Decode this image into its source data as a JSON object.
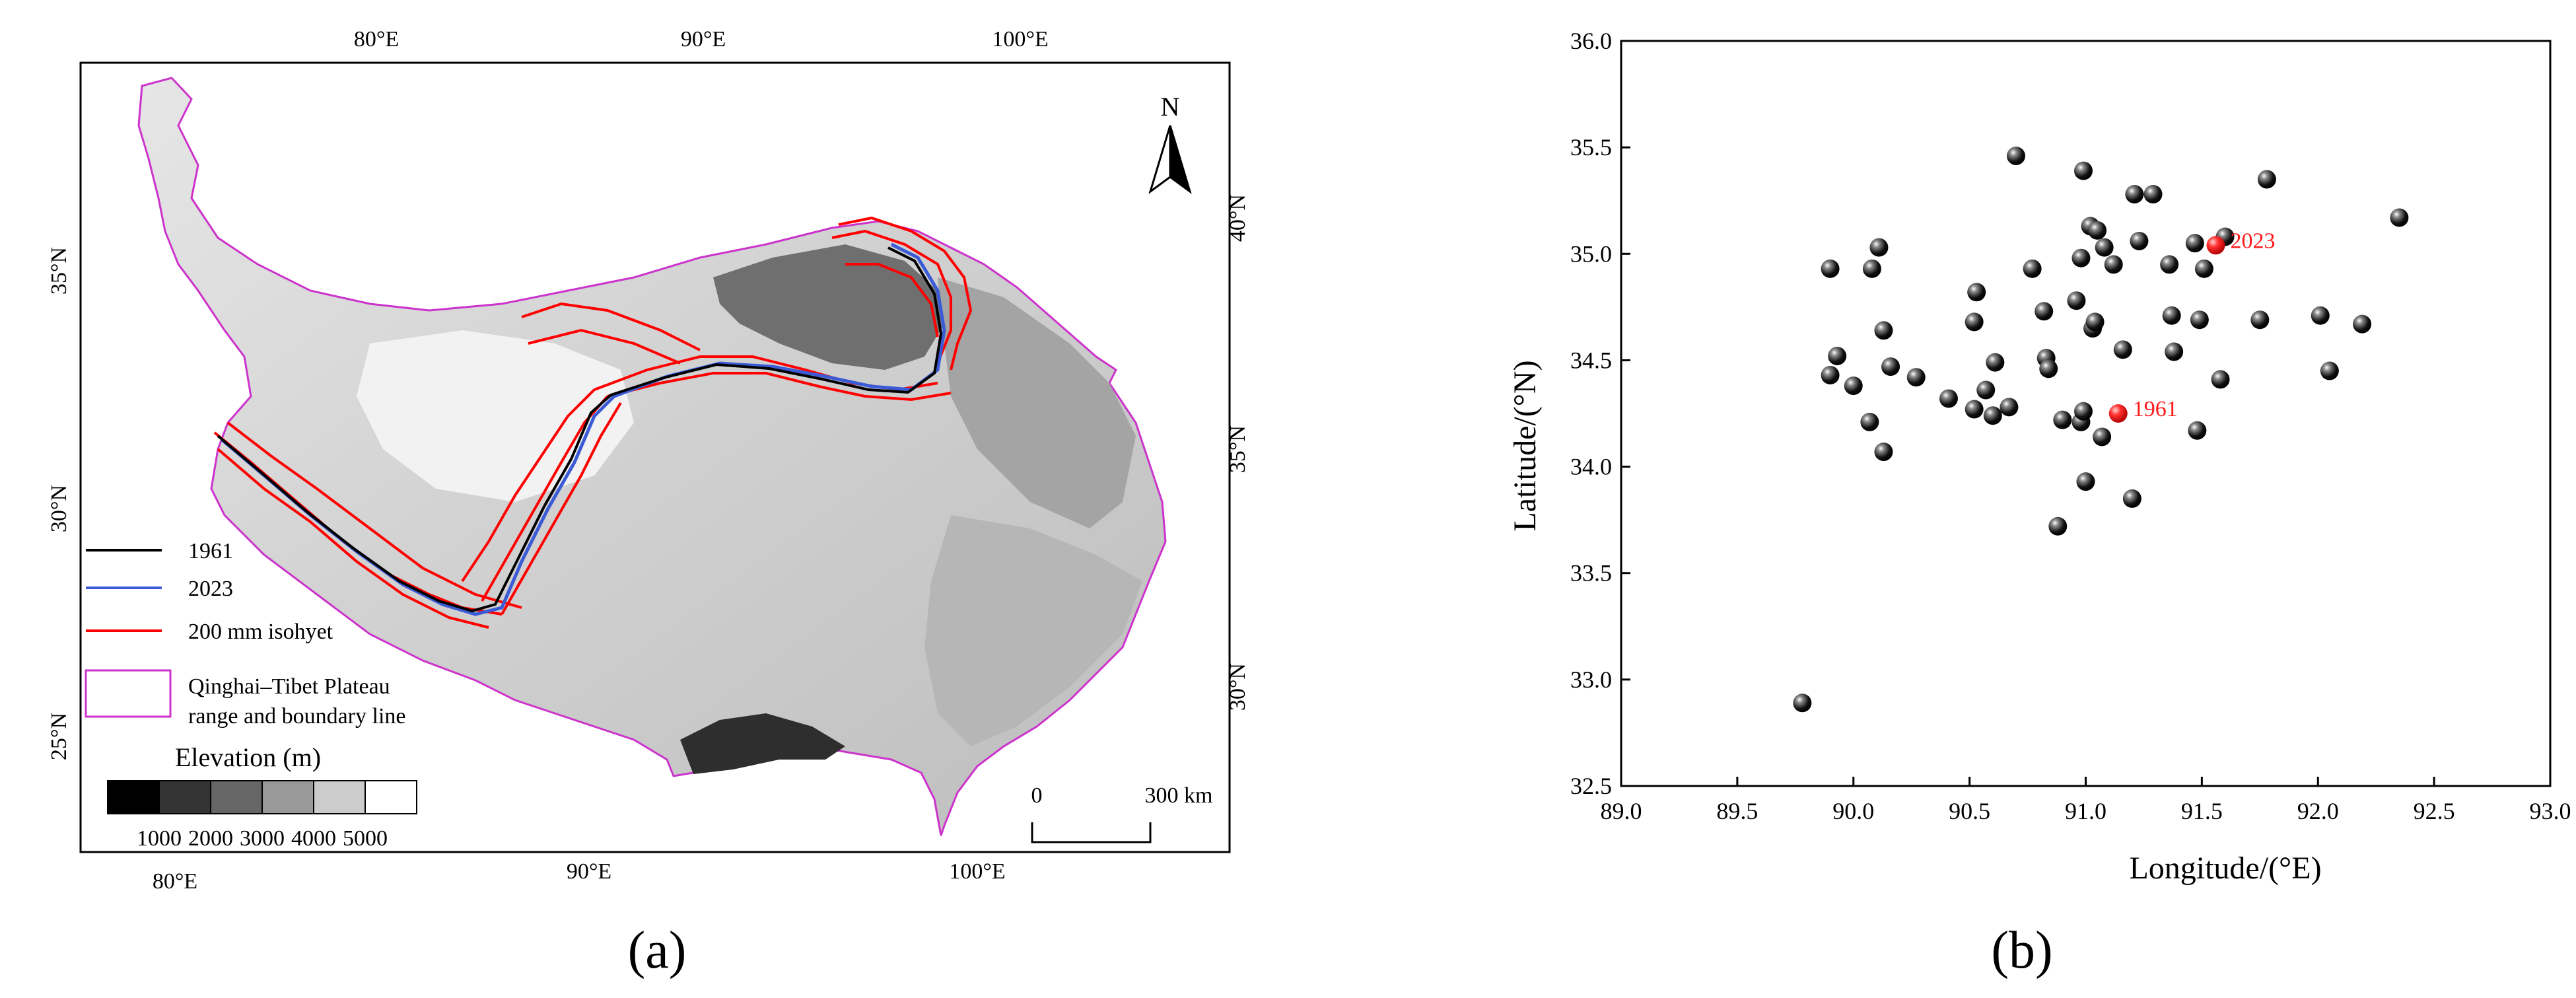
{
  "panel_a": {
    "label": "(a)",
    "top_ticks": [
      "80°E",
      "90°E",
      "100°E"
    ],
    "bottom_ticks": [
      "80°E",
      "90°E",
      "100°E"
    ],
    "left_ticks": [
      "35°N",
      "30°N",
      "25°N"
    ],
    "right_ticks": [
      "40°N",
      "35°N",
      "30°N"
    ],
    "north_label": "N",
    "legend": {
      "items": [
        {
          "label": "1961",
          "color": "#000000"
        },
        {
          "label": "2023",
          "color": "#3b5bd6"
        },
        {
          "label": "200 mm isohyet",
          "color": "#ff0000"
        }
      ],
      "boundary_line1": "Qinghai–Tibet Plateau",
      "boundary_line2": "range and boundary line",
      "boundary_color": "#cc33cc"
    },
    "elevation": {
      "title": "Elevation (m)",
      "labels": [
        "1000",
        "2000",
        "3000",
        "4000",
        "5000"
      ],
      "colors": [
        "#000000",
        "#333333",
        "#666666",
        "#999999",
        "#cccccc",
        "#ffffff"
      ]
    },
    "scale": {
      "start": "0",
      "end": "300 km"
    }
  },
  "panel_b": {
    "label": "(b)",
    "chart_data": {
      "type": "scatter",
      "xlabel": "Longitude/(°E)",
      "ylabel": "Latitude/(°N)",
      "xlim": [
        89.0,
        93.0
      ],
      "ylim": [
        32.5,
        36.0
      ],
      "x_ticks": [
        "89.0",
        "89.5",
        "90.0",
        "90.5",
        "91.0",
        "91.5",
        "92.0",
        "92.5",
        "93.0"
      ],
      "y_ticks": [
        "32.5",
        "33.0",
        "33.5",
        "34.0",
        "34.5",
        "35.0",
        "35.5",
        "36.0"
      ],
      "grid": false,
      "points": [
        [
          89.78,
          32.89
        ],
        [
          89.9,
          34.93
        ],
        [
          89.9,
          34.43
        ],
        [
          89.93,
          34.52
        ],
        [
          90.0,
          34.38
        ],
        [
          90.07,
          34.21
        ],
        [
          90.08,
          34.93
        ],
        [
          90.11,
          35.03
        ],
        [
          90.13,
          34.64
        ],
        [
          90.13,
          34.07
        ],
        [
          90.16,
          34.47
        ],
        [
          90.27,
          34.42
        ],
        [
          90.41,
          34.32
        ],
        [
          90.52,
          34.27
        ],
        [
          90.52,
          34.68
        ],
        [
          90.53,
          34.82
        ],
        [
          90.57,
          34.36
        ],
        [
          90.6,
          34.24
        ],
        [
          90.61,
          34.49
        ],
        [
          90.67,
          34.28
        ],
        [
          90.7,
          35.46
        ],
        [
          90.77,
          34.93
        ],
        [
          90.82,
          34.73
        ],
        [
          90.83,
          34.51
        ],
        [
          90.84,
          34.46
        ],
        [
          90.88,
          33.72
        ],
        [
          90.9,
          34.22
        ],
        [
          90.96,
          34.78
        ],
        [
          90.98,
          34.21
        ],
        [
          90.98,
          34.98
        ],
        [
          90.99,
          34.26
        ],
        [
          90.99,
          35.39
        ],
        [
          91.0,
          33.93
        ],
        [
          91.02,
          35.13
        ],
        [
          91.03,
          34.65
        ],
        [
          91.04,
          34.68
        ],
        [
          91.05,
          35.11
        ],
        [
          91.07,
          34.14
        ],
        [
          91.08,
          35.03
        ],
        [
          91.12,
          34.95
        ],
        [
          91.16,
          34.55
        ],
        [
          91.2,
          33.85
        ],
        [
          91.21,
          35.28
        ],
        [
          91.23,
          35.06
        ],
        [
          91.29,
          35.28
        ],
        [
          91.36,
          34.95
        ],
        [
          91.37,
          34.71
        ],
        [
          91.38,
          34.54
        ],
        [
          91.47,
          35.05
        ],
        [
          91.48,
          34.17
        ],
        [
          91.49,
          34.69
        ],
        [
          91.51,
          34.93
        ],
        [
          91.58,
          34.41
        ],
        [
          91.6,
          35.08
        ],
        [
          91.75,
          34.69
        ],
        [
          91.78,
          35.35
        ],
        [
          92.01,
          34.71
        ],
        [
          92.05,
          34.45
        ],
        [
          92.19,
          34.67
        ],
        [
          92.35,
          35.17
        ]
      ],
      "highlight": [
        {
          "label": "1961",
          "x": 91.14,
          "y": 34.25,
          "color": "#ff1a1a"
        },
        {
          "label": "2023",
          "x": 91.56,
          "y": 35.04,
          "color": "#ff1a1a"
        }
      ]
    }
  }
}
